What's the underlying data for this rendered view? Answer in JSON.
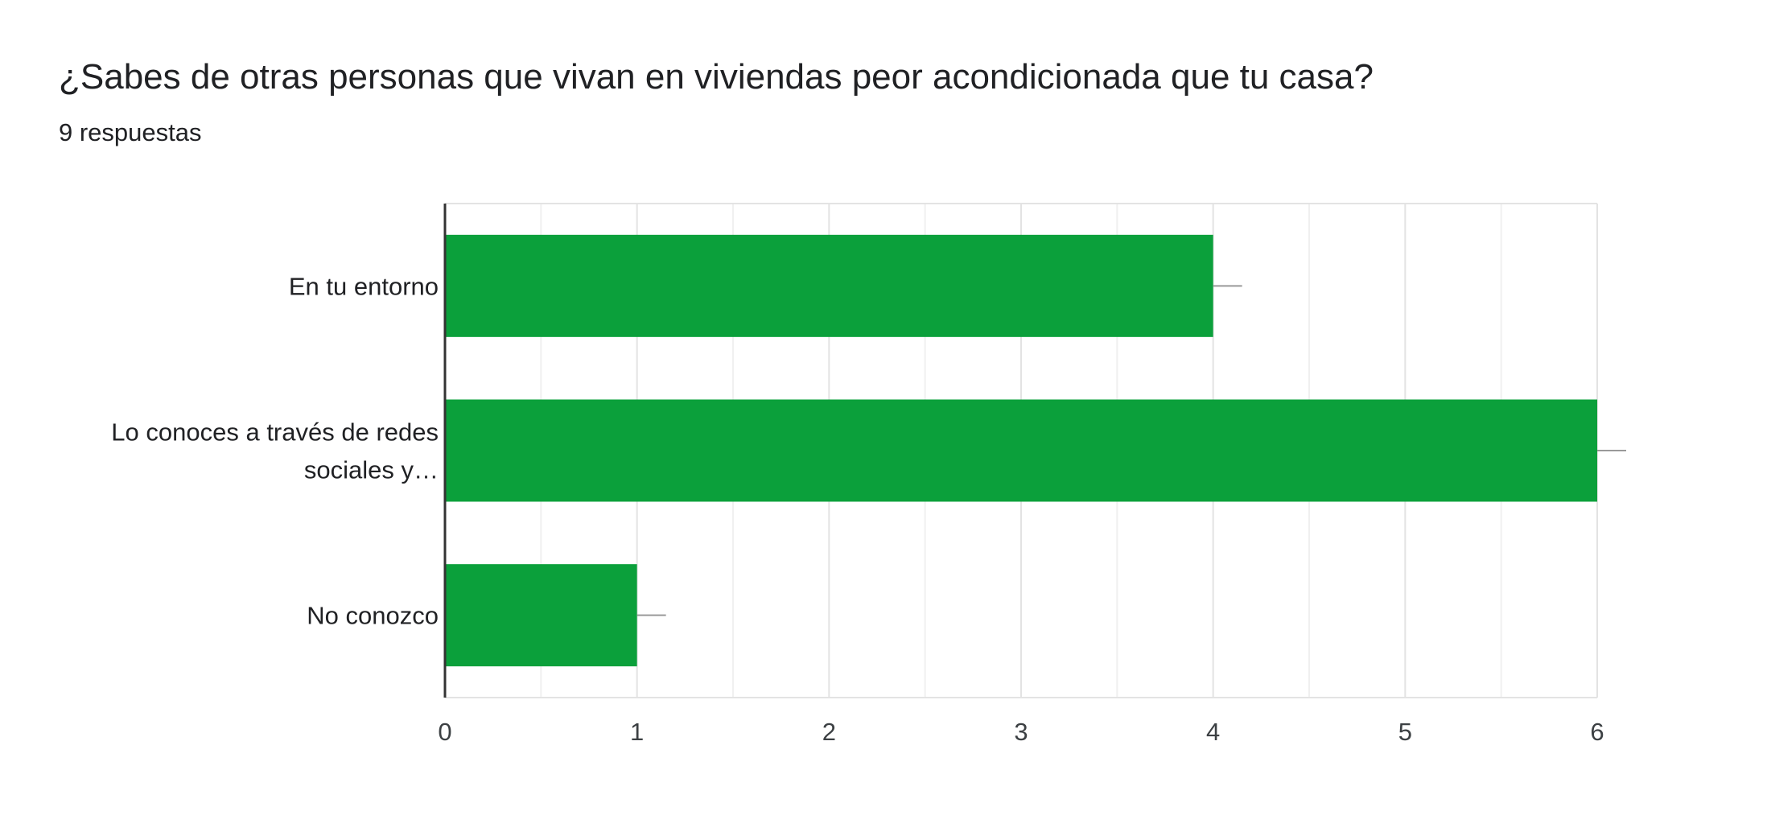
{
  "question": {
    "title": "¿Sabes de otras personas que vivan en viviendas peor acondicionada que tu casa?",
    "response_count": "9 respuestas"
  },
  "colors": {
    "bar": "#0ba03b",
    "axis": "#333333",
    "grid_major": "#e3e3e3",
    "grid_minor": "#f0f0f0",
    "tick_label": "#3c4043",
    "category_label": "#202124",
    "error_whisker": "#999999"
  },
  "chart_data": {
    "type": "bar",
    "orientation": "horizontal",
    "title": "",
    "xlabel": "",
    "ylabel": "",
    "categories": [
      [
        "En tu entorno"
      ],
      [
        "Lo conoces a través de redes",
        "sociales y…"
      ],
      [
        "No conozco"
      ]
    ],
    "values": [
      4,
      6,
      1
    ],
    "xlim": [
      0,
      6
    ],
    "xticks": [
      "0",
      "1",
      "2",
      "3",
      "4",
      "5",
      "6"
    ],
    "grid": true
  }
}
